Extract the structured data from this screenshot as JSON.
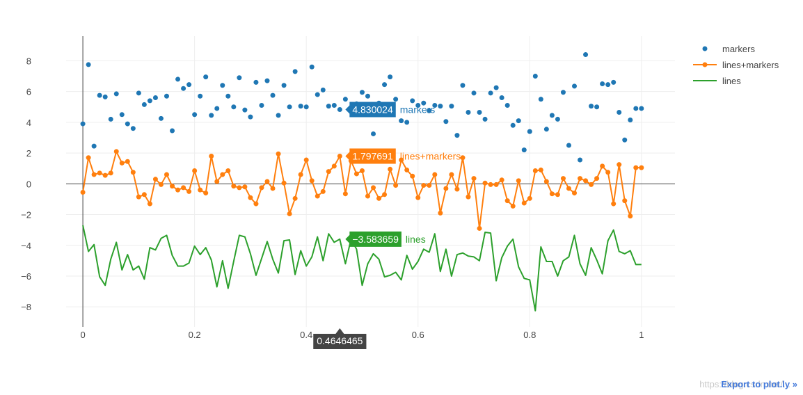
{
  "chart_data": {
    "type": "scatter",
    "title": "",
    "xlabel": "",
    "ylabel": "",
    "xlim": [
      -0.03,
      1.06
    ],
    "ylim": [
      -9.3,
      9.6
    ],
    "x_ticks": [
      0,
      0.2,
      0.4,
      0.6,
      0.8,
      1
    ],
    "x_tick_labels": [
      "0",
      "0.2",
      "0.4",
      "0.6",
      "0.8",
      "1"
    ],
    "y_ticks": [
      -8,
      -6,
      -4,
      -2,
      0,
      2,
      4,
      6,
      8
    ],
    "y_tick_labels": [
      "−8",
      "−6",
      "−4",
      "−2",
      "0",
      "2",
      "4",
      "6",
      "8"
    ],
    "grid": true,
    "legend_position": "top-right",
    "n_points": 101,
    "x_range": [
      0,
      1
    ],
    "series": [
      {
        "name": "markers",
        "mode": "markers",
        "color": "#1f77b4",
        "values": [
          3.9,
          7.75,
          2.45,
          5.75,
          5.65,
          4.2,
          5.85,
          4.5,
          3.9,
          3.6,
          5.9,
          5.15,
          5.4,
          5.6,
          4.25,
          5.7,
          3.45,
          6.8,
          6.2,
          6.45,
          4.5,
          5.7,
          6.95,
          4.45,
          4.9,
          6.4,
          5.7,
          5.0,
          6.9,
          4.8,
          4.35,
          6.6,
          5.1,
          6.7,
          5.75,
          4.45,
          6.4,
          5.0,
          7.3,
          5.05,
          5.0,
          7.6,
          5.8,
          6.1,
          5.05,
          5.1,
          4.83,
          5.5,
          4.9,
          5.2,
          5.95,
          5.7,
          3.25,
          5.25,
          6.45,
          6.95,
          5.5,
          4.1,
          4.0,
          5.4,
          5.1,
          5.25,
          4.75,
          5.1,
          5.05,
          4.05,
          5.05,
          3.15,
          6.4,
          4.65,
          5.9,
          4.65,
          4.2,
          5.9,
          6.25,
          5.6,
          5.1,
          3.8,
          4.1,
          2.2,
          3.4,
          7.0,
          5.5,
          3.55,
          4.45,
          4.2,
          5.95,
          2.5,
          6.35,
          1.55,
          8.4,
          5.05,
          5.0,
          6.5,
          6.45,
          6.6,
          4.65,
          2.85,
          4.15,
          4.9,
          4.9
        ]
      },
      {
        "name": "lines+markers",
        "mode": "lines+markers",
        "color": "#ff7f0e",
        "values": [
          -0.55,
          1.7,
          0.6,
          0.7,
          0.55,
          0.7,
          2.1,
          1.35,
          1.45,
          0.75,
          -0.85,
          -0.7,
          -1.3,
          0.3,
          -0.05,
          0.6,
          -0.15,
          -0.4,
          -0.25,
          -0.5,
          0.85,
          -0.4,
          -0.6,
          1.8,
          0.15,
          0.6,
          0.85,
          -0.15,
          -0.25,
          -0.2,
          -0.9,
          -1.3,
          -0.25,
          0.15,
          -0.3,
          1.95,
          0.05,
          -1.95,
          -0.95,
          0.6,
          1.55,
          0.2,
          -0.8,
          -0.5,
          0.8,
          1.15,
          1.8,
          -0.65,
          1.5,
          0.65,
          0.85,
          -0.8,
          -0.25,
          -0.95,
          -0.7,
          0.95,
          -0.1,
          1.55,
          0.9,
          0.5,
          -0.9,
          -0.1,
          -0.1,
          0.6,
          -1.9,
          -0.3,
          0.6,
          -0.35,
          1.7,
          -0.85,
          0.35,
          -2.9,
          0.05,
          -0.05,
          -0.05,
          0.25,
          -1.1,
          -1.45,
          0.2,
          -1.25,
          -0.95,
          0.85,
          0.9,
          0.15,
          -0.65,
          -0.7,
          0.35,
          -0.3,
          -0.6,
          0.35,
          0.2,
          -0.05,
          0.35,
          1.15,
          0.75,
          -1.3,
          1.25,
          -1.1,
          -2.1,
          1.05,
          1.05
        ]
      },
      {
        "name": "lines",
        "mode": "lines",
        "color": "#2ca02c",
        "values": [
          -2.7,
          -4.4,
          -3.95,
          -6.05,
          -6.6,
          -4.9,
          -3.8,
          -5.6,
          -4.6,
          -5.6,
          -5.35,
          -6.2,
          -4.15,
          -4.3,
          -3.55,
          -3.35,
          -4.65,
          -5.35,
          -5.35,
          -5.15,
          -4.05,
          -4.6,
          -4.15,
          -4.95,
          -6.7,
          -5.0,
          -6.8,
          -5.05,
          -3.35,
          -3.45,
          -4.55,
          -5.95,
          -4.85,
          -3.75,
          -4.9,
          -5.8,
          -3.7,
          -3.65,
          -5.9,
          -4.35,
          -5.35,
          -4.75,
          -3.45,
          -5.0,
          -3.25,
          -3.8,
          -3.6,
          -5.2,
          -3.6,
          -4.25,
          -6.6,
          -5.2,
          -4.55,
          -4.9,
          -6.05,
          -5.95,
          -5.75,
          -6.25,
          -4.65,
          -5.55,
          -5.05,
          -4.25,
          -4.45,
          -3.25,
          -5.7,
          -4.25,
          -6.0,
          -4.6,
          -4.5,
          -4.7,
          -4.75,
          -5.0,
          -3.15,
          -3.2,
          -6.3,
          -4.8,
          -4.05,
          -3.6,
          -5.4,
          -6.15,
          -6.25,
          -8.25,
          -4.1,
          -5.05,
          -5.05,
          -6.0,
          -5.0,
          -4.75,
          -3.35,
          -5.2,
          -5.95,
          -4.15,
          -4.95,
          -5.85,
          -3.7,
          -3.0,
          -4.4,
          -4.55,
          -4.35,
          -5.25,
          -5.25
        ]
      }
    ],
    "hover": {
      "x_index": 46,
      "x_label": "0.4646465",
      "series_labels": [
        {
          "series": "markers",
          "value": "4.830024",
          "name": "markers"
        },
        {
          "series": "lines+markers",
          "value": "1.797691",
          "name": "lines+markers"
        },
        {
          "series": "lines",
          "value": "−3.583659",
          "name": "lines"
        }
      ]
    }
  },
  "footer": {
    "export_label": "Export to plot.ly »",
    "watermark": "https://blog.csdn.net/..."
  }
}
